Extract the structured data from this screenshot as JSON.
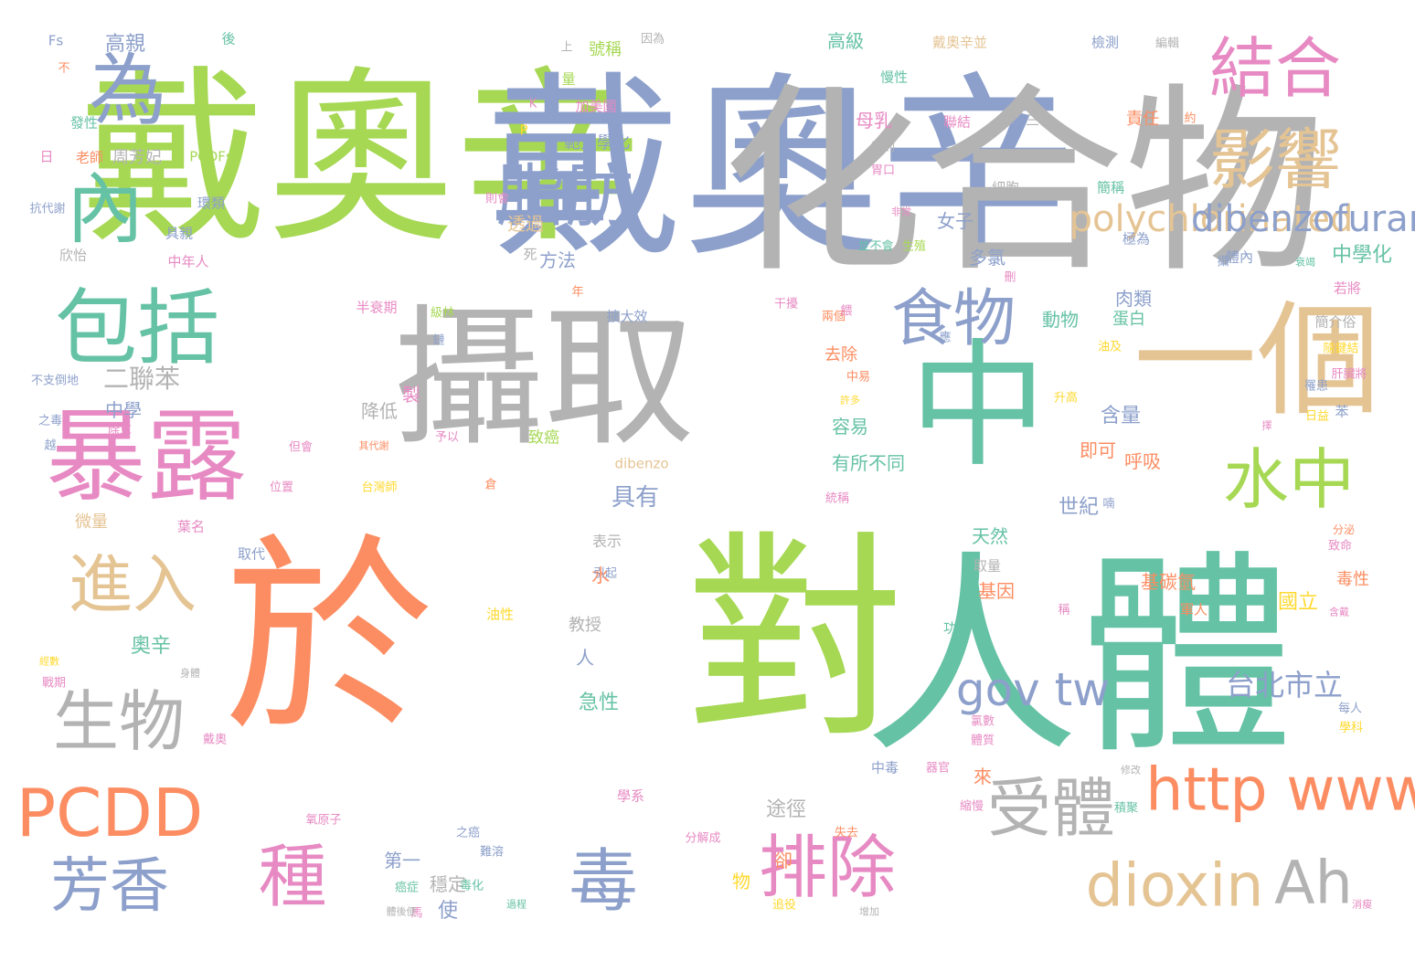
{
  "palette": {
    "green": "#a6d854",
    "slate": "#8da0cb",
    "gray": "#b3b3b3",
    "orange": "#fc8d62",
    "teal": "#66c2a5",
    "pink": "#e78ac3",
    "tan": "#e5c494",
    "yellow": "#ffd92f",
    "background": "#ffffff"
  },
  "words": [
    {
      "text": "戴奧辛",
      "color": "green"
    },
    {
      "text": "戴奧辛",
      "color": "slate"
    },
    {
      "text": "化合物",
      "color": "gray"
    },
    {
      "text": "於",
      "color": "orange"
    },
    {
      "text": "對",
      "color": "green"
    },
    {
      "text": "人體",
      "color": "teal"
    },
    {
      "text": "攝取",
      "color": "gray"
    },
    {
      "text": "一個",
      "color": "tan"
    },
    {
      "text": "中",
      "color": "teal"
    },
    {
      "text": "暴露",
      "color": "pink"
    },
    {
      "text": "包括",
      "color": "teal"
    },
    {
      "text": "為",
      "color": "slate"
    },
    {
      "text": "內",
      "color": "teal"
    },
    {
      "text": "結合",
      "color": "pink"
    },
    {
      "text": "影響",
      "color": "tan"
    },
    {
      "text": "脂肪",
      "color": "slate"
    },
    {
      "text": "食物",
      "color": "slate"
    },
    {
      "text": "水中",
      "color": "green"
    },
    {
      "text": "進入",
      "color": "tan"
    },
    {
      "text": "生物",
      "color": "gray"
    },
    {
      "text": "PCDD",
      "color": "orange"
    },
    {
      "text": "芳香",
      "color": "slate"
    },
    {
      "text": "種",
      "color": "pink"
    },
    {
      "text": "毒",
      "color": "slate"
    },
    {
      "text": "排除",
      "color": "pink"
    },
    {
      "text": "dioxin",
      "color": "tan"
    },
    {
      "text": "Ah",
      "color": "gray"
    },
    {
      "text": "受體",
      "color": "gray"
    },
    {
      "text": "http www",
      "color": "orange"
    },
    {
      "text": "gov tw",
      "color": "slate"
    },
    {
      "text": "polychlorinated",
      "color": "tan"
    },
    {
      "text": "dibenzofurans",
      "color": "slate"
    },
    {
      "text": "台北市立",
      "color": "slate"
    },
    {
      "text": "二聯苯",
      "color": "gray"
    },
    {
      "text": "具有",
      "color": "slate"
    },
    {
      "text": "高級",
      "color": "teal"
    },
    {
      "text": "奧辛",
      "color": "teal"
    },
    {
      "text": "動物",
      "color": "teal"
    },
    {
      "text": "蛋白",
      "color": "teal"
    },
    {
      "text": "急性",
      "color": "teal"
    },
    {
      "text": "途徑",
      "color": "gray"
    },
    {
      "text": "透過",
      "color": "tan"
    },
    {
      "text": "方法",
      "color": "slate"
    },
    {
      "text": "多氯",
      "color": "slate"
    },
    {
      "text": "女子",
      "color": "slate"
    },
    {
      "text": "母乳",
      "color": "pink"
    },
    {
      "text": "肉類",
      "color": "slate"
    },
    {
      "text": "含量",
      "color": "slate"
    },
    {
      "text": "容易",
      "color": "teal"
    },
    {
      "text": "有所不同",
      "color": "teal"
    },
    {
      "text": "即可",
      "color": "orange"
    },
    {
      "text": "呼吸",
      "color": "orange"
    },
    {
      "text": "天然",
      "color": "teal"
    },
    {
      "text": "基因",
      "color": "orange"
    },
    {
      "text": "基碳氫",
      "color": "orange"
    },
    {
      "text": "去除",
      "color": "orange"
    },
    {
      "text": "第一",
      "color": "slate"
    },
    {
      "text": "微量",
      "color": "tan"
    },
    {
      "text": "高親",
      "color": "slate"
    },
    {
      "text": "範大學化",
      "color": "slate"
    },
    {
      "text": "世紀",
      "color": "slate"
    },
    {
      "text": "責任",
      "color": "orange"
    },
    {
      "text": "細胞",
      "color": "gray"
    },
    {
      "text": "簡稱",
      "color": "teal"
    },
    {
      "text": "極為",
      "color": "slate"
    },
    {
      "text": "體內",
      "color": "slate"
    },
    {
      "text": "教授",
      "color": "gray"
    },
    {
      "text": "穩定",
      "color": "gray"
    },
    {
      "text": "毒性",
      "color": "orange"
    },
    {
      "text": "周芳妃",
      "color": "gray"
    },
    {
      "text": "PCDFs",
      "color": "green"
    },
    {
      "text": "環類",
      "color": "slate"
    },
    {
      "text": "具親",
      "color": "slate"
    },
    {
      "text": "欣怡",
      "color": "gray"
    },
    {
      "text": "中年人",
      "color": "pink"
    },
    {
      "text": "老師",
      "color": "orange"
    },
    {
      "text": "發性",
      "color": "teal"
    },
    {
      "text": "量",
      "color": "green"
    },
    {
      "text": "加美國",
      "color": "pink"
    },
    {
      "text": "聯結",
      "color": "pink"
    },
    {
      "text": "三年",
      "color": "gray"
    },
    {
      "text": "號稱",
      "color": "green"
    },
    {
      "text": "因為",
      "color": "gray"
    },
    {
      "text": "戴奧辛並",
      "color": "tan"
    },
    {
      "text": "檢測",
      "color": "slate"
    },
    {
      "text": "編輯",
      "color": "gray"
    },
    {
      "text": "慢性",
      "color": "teal"
    },
    {
      "text": "後",
      "color": "teal"
    },
    {
      "text": "Fs",
      "color": "slate"
    },
    {
      "text": "不",
      "color": "orange"
    },
    {
      "text": "水",
      "color": "orange"
    },
    {
      "text": "人",
      "color": "slate"
    },
    {
      "text": "來",
      "color": "orange"
    },
    {
      "text": "卻",
      "color": "orange"
    },
    {
      "text": "物",
      "color": "yellow"
    },
    {
      "text": "使",
      "color": "slate"
    },
    {
      "text": "製",
      "color": "pink"
    },
    {
      "text": "降低",
      "color": "gray"
    },
    {
      "text": "中學",
      "color": "slate"
    },
    {
      "text": "中學化",
      "color": "teal"
    },
    {
      "text": "國立",
      "color": "yellow"
    },
    {
      "text": "致癌",
      "color": "green"
    },
    {
      "text": "擴大效",
      "color": "slate"
    },
    {
      "text": "學系",
      "color": "pink"
    },
    {
      "text": "兩個",
      "color": "orange"
    },
    {
      "text": "干擾",
      "color": "pink"
    },
    {
      "text": "半衰期",
      "color": "pink"
    },
    {
      "text": "級林",
      "color": "green"
    },
    {
      "text": "表示",
      "color": "gray"
    },
    {
      "text": "引起",
      "color": "slate"
    },
    {
      "text": "dibenzo",
      "color": "tan"
    },
    {
      "text": "油性",
      "color": "yellow"
    },
    {
      "text": "台灣師",
      "color": "yellow"
    },
    {
      "text": "位置",
      "color": "pink"
    },
    {
      "text": "取代",
      "color": "slate"
    },
    {
      "text": "葉名",
      "color": "pink"
    },
    {
      "text": "統稱",
      "color": "pink"
    },
    {
      "text": "取量",
      "color": "gray"
    },
    {
      "text": "功能",
      "color": "teal"
    },
    {
      "text": "軍人",
      "color": "orange"
    },
    {
      "text": "中毒",
      "color": "slate"
    },
    {
      "text": "器官",
      "color": "pink"
    },
    {
      "text": "則會",
      "color": "pink"
    },
    {
      "text": "抗代謝",
      "color": "slate"
    },
    {
      "text": "不支倒地",
      "color": "slate"
    },
    {
      "text": "之毒",
      "color": "slate"
    },
    {
      "text": "除草",
      "color": "pink"
    },
    {
      "text": "氧原子",
      "color": "pink"
    },
    {
      "text": "難溶",
      "color": "slate"
    },
    {
      "text": "分解成",
      "color": "pink"
    },
    {
      "text": "失去",
      "color": "orange"
    },
    {
      "text": "追役",
      "color": "yellow"
    },
    {
      "text": "毒化",
      "color": "teal"
    },
    {
      "text": "增加",
      "color": "gray"
    },
    {
      "text": "積聚",
      "color": "teal"
    },
    {
      "text": "修改",
      "color": "gray"
    },
    {
      "text": "分泌",
      "color": "orange"
    },
    {
      "text": "隨鍵結",
      "color": "yellow"
    },
    {
      "text": "簡介俗",
      "color": "gray"
    },
    {
      "text": "若將",
      "color": "pink"
    },
    {
      "text": "苯",
      "color": "slate"
    },
    {
      "text": "升高",
      "color": "yellow"
    },
    {
      "text": "油及",
      "color": "yellow"
    },
    {
      "text": "並不會",
      "color": "teal"
    },
    {
      "text": "生殖",
      "color": "green"
    },
    {
      "text": "非常",
      "color": "pink"
    },
    {
      "text": "中易",
      "color": "orange"
    },
    {
      "text": "許多",
      "color": "yellow"
    },
    {
      "text": "餵",
      "color": "pink"
    },
    {
      "text": "死",
      "color": "gray"
    },
    {
      "text": "年",
      "color": "orange"
    },
    {
      "text": "K",
      "color": "pink"
    },
    {
      "text": "P",
      "color": "yellow"
    },
    {
      "text": "刪",
      "color": "pink"
    },
    {
      "text": "應",
      "color": "slate"
    },
    {
      "text": "鏈",
      "color": "slate"
    },
    {
      "text": "約",
      "color": "orange"
    },
    {
      "text": "上",
      "color": "gray"
    },
    {
      "text": "日",
      "color": "pink"
    },
    {
      "text": "越",
      "color": "slate"
    },
    {
      "text": "馬",
      "color": "pink"
    },
    {
      "text": "戴奧",
      "color": "pink"
    },
    {
      "text": "消瘦",
      "color": "pink"
    },
    {
      "text": "但會",
      "color": "pink"
    },
    {
      "text": "予以",
      "color": "pink"
    },
    {
      "text": "其代謝",
      "color": "orange"
    },
    {
      "text": "倉",
      "color": "orange"
    },
    {
      "text": "喃",
      "color": "slate"
    },
    {
      "text": "擇",
      "color": "pink"
    },
    {
      "text": "衰竭",
      "color": "teal"
    },
    {
      "text": "肝臟將",
      "color": "pink"
    },
    {
      "text": "罹患",
      "color": "slate"
    },
    {
      "text": "日益",
      "color": "yellow"
    },
    {
      "text": "致命",
      "color": "pink"
    },
    {
      "text": "含戴",
      "color": "pink"
    },
    {
      "text": "每人",
      "color": "slate"
    },
    {
      "text": "學科",
      "color": "yellow"
    },
    {
      "text": "氯數",
      "color": "pink"
    },
    {
      "text": "體質",
      "color": "pink"
    },
    {
      "text": "過程",
      "color": "teal"
    },
    {
      "text": "之癌",
      "color": "slate"
    },
    {
      "text": "癌症",
      "color": "teal"
    },
    {
      "text": "體後便",
      "color": "gray"
    },
    {
      "text": "經數",
      "color": "yellow"
    },
    {
      "text": "戰期",
      "color": "pink"
    },
    {
      "text": "身體",
      "color": "gray"
    },
    {
      "text": "稱",
      "color": "pink"
    },
    {
      "text": "體的",
      "color": "gray"
    },
    {
      "text": "胃口",
      "color": "pink"
    },
    {
      "text": "縮慢",
      "color": "pink"
    },
    {
      "text": "攝",
      "color": "slate"
    }
  ]
}
